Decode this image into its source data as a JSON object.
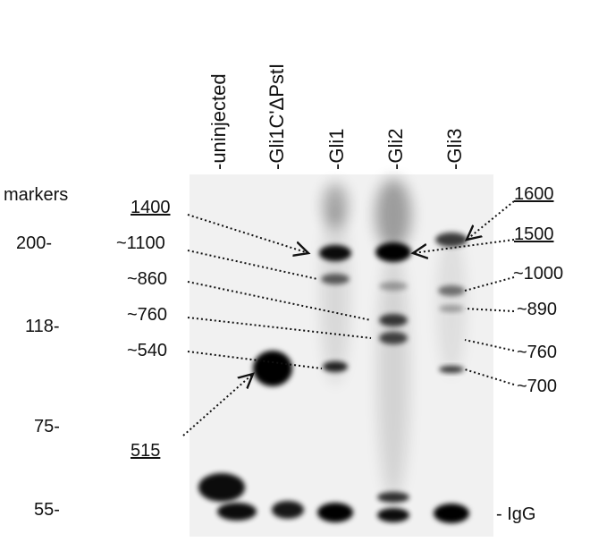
{
  "lanes": [
    "-uninjected",
    "-Gli1C'ΔPstI",
    "-Gli1",
    "-Gli2",
    "-Gli3"
  ],
  "markers": {
    "title": "markers",
    "values": [
      "200-",
      "118-",
      "75-",
      "55-"
    ]
  },
  "left_labels": [
    "1400",
    "~1100",
    "~860",
    "~760",
    "~540",
    "515"
  ],
  "right_labels": [
    "1600",
    "1500",
    "~1000",
    "~890",
    "~760",
    "~700"
  ],
  "igg_label": "- IgG"
}
